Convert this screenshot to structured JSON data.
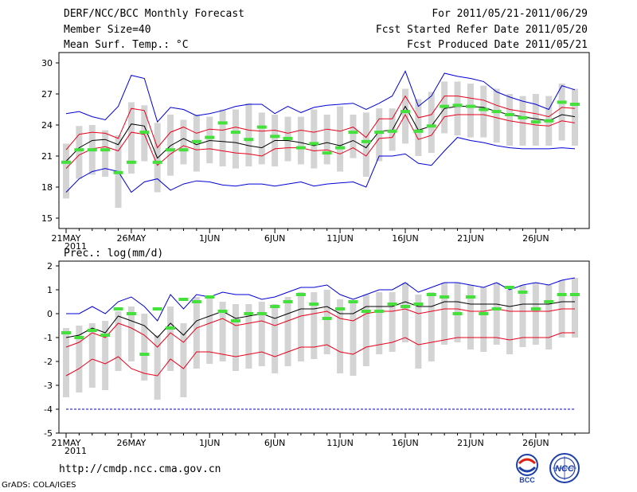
{
  "header": {
    "title": "DERF/NCC/BCC Monthly Forecast",
    "member_size": "Member Size=40",
    "variable": "Mean Surf. Temp.: °C",
    "period": "For 2011/05/21-2011/06/29",
    "fcst_started": "Fcst Started Refer Date 2011/05/20",
    "fcst_produced": "Fcst Produced Date 2011/05/21"
  },
  "footer": {
    "url": "http://cmdp.ncc.cma.gov.cn",
    "credit": "GrADS: COLA/IGES",
    "logo_bcc": "BCC",
    "logo_ncc": "NCC"
  },
  "colors": {
    "ensemble_mean": "#000000",
    "inner_band": "#e8001c",
    "outer_band": "#0000d8",
    "box": "#d4d4d4",
    "observed": "#44e03c",
    "floor_line": "#0000d8"
  },
  "chart_data": [
    {
      "type": "line",
      "title": "Mean Surf. Temp.: °C",
      "x_tick_labels": [
        "21MAY",
        "26MAY",
        "1JUN",
        "6JUN",
        "11JUN",
        "16JUN",
        "21JUN",
        "26JUN"
      ],
      "x_tick_days": [
        0,
        5,
        11,
        16,
        21,
        26,
        31,
        36
      ],
      "year_label": "2011",
      "ylim": [
        14,
        31
      ],
      "yticks": [
        15,
        18,
        21,
        24,
        27,
        30
      ],
      "days": 40,
      "series": [
        {
          "name": "mean",
          "values": [
            20.5,
            21.8,
            22.5,
            22.6,
            22.1,
            24.1,
            23.9,
            20.8,
            22.0,
            22.7,
            22.1,
            22.5,
            22.4,
            22.3,
            22.0,
            21.8,
            22.5,
            22.5,
            22.3,
            22.0,
            22.3,
            22.0,
            22.5,
            21.8,
            23.4,
            23.5,
            25.8,
            23.5,
            23.9,
            25.6,
            25.8,
            25.8,
            25.7,
            25.3,
            25.0,
            24.8,
            24.6,
            24.4,
            25.0,
            24.8
          ]
        },
        {
          "name": "upper_red",
          "values": [
            21.6,
            23.1,
            23.3,
            23.2,
            22.7,
            25.6,
            25.4,
            21.8,
            23.3,
            23.8,
            23.2,
            23.6,
            23.5,
            23.8,
            23.5,
            23.4,
            23.5,
            23.2,
            23.5,
            23.3,
            23.6,
            23.4,
            23.8,
            22.8,
            24.6,
            24.6,
            26.8,
            24.7,
            25.0,
            26.8,
            26.8,
            26.6,
            26.4,
            25.9,
            25.5,
            25.3,
            25.1,
            24.8,
            25.7,
            25.6
          ]
        },
        {
          "name": "lower_red",
          "values": [
            19.8,
            21.1,
            21.7,
            21.9,
            21.5,
            23.3,
            23.1,
            20.1,
            21.2,
            22.0,
            21.6,
            21.7,
            21.5,
            21.3,
            21.2,
            21.0,
            21.7,
            21.8,
            21.8,
            21.5,
            21.6,
            21.2,
            21.8,
            21.0,
            22.7,
            22.8,
            25.0,
            22.6,
            23.0,
            24.8,
            25.0,
            25.0,
            25.0,
            24.7,
            24.4,
            24.2,
            24.0,
            23.9,
            24.4,
            24.2
          ]
        },
        {
          "name": "upper_blue",
          "values": [
            25.1,
            25.3,
            24.8,
            24.5,
            25.8,
            28.8,
            28.5,
            24.3,
            25.7,
            25.5,
            24.9,
            25.1,
            25.4,
            25.8,
            26.0,
            26.0,
            25.1,
            25.8,
            25.2,
            25.7,
            25.9,
            26.0,
            26.1,
            25.5,
            26.1,
            26.8,
            29.2,
            25.8,
            26.8,
            29.0,
            28.7,
            28.5,
            28.2,
            27.2,
            26.7,
            26.3,
            26.0,
            25.5,
            27.8,
            27.4
          ]
        },
        {
          "name": "lower_blue",
          "values": [
            17.5,
            18.8,
            19.5,
            19.8,
            19.5,
            17.5,
            18.5,
            18.8,
            17.7,
            18.3,
            18.6,
            18.5,
            18.2,
            18.1,
            18.3,
            18.3,
            18.1,
            18.3,
            18.5,
            18.1,
            18.3,
            18.4,
            18.5,
            18.0,
            21.0,
            21.0,
            21.2,
            20.3,
            20.1,
            21.5,
            22.8,
            22.5,
            22.3,
            22.0,
            21.8,
            21.7,
            21.7,
            21.7,
            21.8,
            21.7
          ]
        }
      ],
      "boxes": [
        [
          16.9,
          22.2
        ],
        [
          18.8,
          23.9
        ],
        [
          19.2,
          24.0
        ],
        [
          19.0,
          23.5
        ],
        [
          16.0,
          23.0
        ],
        [
          19.3,
          26.2
        ],
        [
          20.5,
          25.9
        ],
        [
          17.5,
          24.2
        ],
        [
          19.1,
          25.0
        ],
        [
          20.2,
          24.5
        ],
        [
          19.5,
          25.0
        ],
        [
          20.3,
          24.8
        ],
        [
          20.0,
          25.5
        ],
        [
          19.8,
          25.5
        ],
        [
          20.0,
          26.1
        ],
        [
          20.2,
          25.2
        ],
        [
          20.0,
          25.0
        ],
        [
          20.5,
          24.8
        ],
        [
          20.2,
          24.8
        ],
        [
          19.8,
          25.5
        ],
        [
          20.2,
          25.0
        ],
        [
          19.5,
          25.8
        ],
        [
          20.8,
          25.0
        ],
        [
          19.0,
          25.2
        ],
        [
          20.5,
          25.6
        ],
        [
          21.5,
          25.6
        ],
        [
          22.2,
          27.5
        ],
        [
          21.0,
          26.5
        ],
        [
          21.3,
          27.2
        ],
        [
          23.2,
          28.2
        ],
        [
          23.0,
          28.2
        ],
        [
          22.8,
          28.0
        ],
        [
          22.8,
          27.8
        ],
        [
          22.3,
          27.5
        ],
        [
          22.0,
          27.0
        ],
        [
          22.0,
          26.8
        ],
        [
          22.0,
          27.0
        ],
        [
          22.0,
          26.8
        ],
        [
          22.5,
          28.0
        ],
        [
          22.0,
          27.5
        ]
      ],
      "observed": [
        20.4,
        21.6,
        21.6,
        21.6,
        19.4,
        20.4,
        23.3,
        20.4,
        21.6,
        21.6,
        22.4,
        22.8,
        24.2,
        23.3,
        22.6,
        23.8,
        22.9,
        22.7,
        21.8,
        22.2,
        21.3,
        21.8,
        23.3,
        22.4,
        23.3,
        23.4,
        25.3,
        23.4,
        23.9,
        25.8,
        25.9,
        25.8,
        25.5,
        25.3,
        25.0,
        24.7,
        24.3,
        24.4,
        26.2,
        26.0
      ]
    },
    {
      "type": "line",
      "title": "Prec.: log(mm/d)",
      "x_tick_labels": [
        "21MAY",
        "26MAY",
        "1JUN",
        "6JUN",
        "11JUN",
        "16JUN",
        "21JUN",
        "26JUN"
      ],
      "x_tick_days": [
        0,
        5,
        11,
        16,
        21,
        26,
        31,
        36
      ],
      "year_label": "2011",
      "ylim": [
        -5,
        2.2
      ],
      "yticks": [
        -5,
        -4,
        -3,
        -2,
        -1,
        0,
        1,
        2
      ],
      "days": 40,
      "series": [
        {
          "name": "mean",
          "values": [
            -1.0,
            -0.9,
            -0.6,
            -0.8,
            -0.1,
            -0.3,
            -0.5,
            -1.0,
            -0.4,
            -0.9,
            -0.3,
            -0.1,
            0.1,
            -0.2,
            -0.1,
            0.0,
            -0.2,
            0.0,
            0.2,
            0.2,
            0.3,
            0.0,
            0.0,
            0.3,
            0.3,
            0.3,
            0.5,
            0.3,
            0.3,
            0.5,
            0.5,
            0.4,
            0.4,
            0.4,
            0.3,
            0.4,
            0.4,
            0.4,
            0.5,
            0.5
          ]
        },
        {
          "name": "upper_red",
          "values": [
            -1.4,
            -1.2,
            -0.8,
            -1.0,
            -0.4,
            -0.6,
            -0.9,
            -1.4,
            -0.8,
            -1.2,
            -0.6,
            -0.4,
            -0.2,
            -0.5,
            -0.4,
            -0.3,
            -0.5,
            -0.3,
            -0.1,
            0.0,
            0.1,
            -0.2,
            -0.3,
            0.0,
            0.1,
            0.1,
            0.2,
            0.0,
            0.1,
            0.2,
            0.2,
            0.1,
            0.1,
            0.2,
            0.1,
            0.1,
            0.1,
            0.1,
            0.2,
            0.2
          ]
        },
        {
          "name": "lower_red",
          "values": [
            -2.6,
            -2.3,
            -1.9,
            -2.1,
            -1.8,
            -2.3,
            -2.5,
            -2.6,
            -1.9,
            -2.3,
            -1.6,
            -1.6,
            -1.7,
            -1.8,
            -1.7,
            -1.6,
            -1.8,
            -1.6,
            -1.4,
            -1.4,
            -1.3,
            -1.6,
            -1.7,
            -1.4,
            -1.3,
            -1.2,
            -1.0,
            -1.3,
            -1.2,
            -1.1,
            -1.0,
            -1.0,
            -1.0,
            -1.0,
            -1.1,
            -1.0,
            -1.0,
            -1.0,
            -0.8,
            -0.8
          ]
        },
        {
          "name": "upper_blue",
          "values": [
            0.0,
            0.0,
            0.3,
            0.0,
            0.5,
            0.7,
            0.3,
            -0.3,
            0.8,
            0.2,
            0.8,
            0.7,
            0.9,
            0.8,
            0.8,
            0.6,
            0.7,
            0.9,
            1.1,
            1.1,
            1.2,
            0.8,
            0.6,
            0.8,
            1.0,
            1.0,
            1.3,
            0.9,
            1.1,
            1.3,
            1.3,
            1.2,
            1.1,
            1.3,
            1.0,
            1.2,
            1.3,
            1.2,
            1.4,
            1.5
          ]
        },
        {
          "name": "floor",
          "values": [
            -4,
            -4,
            -4,
            -4,
            -4,
            -4,
            -4,
            -4,
            -4,
            -4,
            -4,
            -4,
            -4,
            -4,
            -4,
            -4,
            -4,
            -4,
            -4,
            -4,
            -4,
            -4,
            -4,
            -4,
            -4,
            -4,
            -4,
            -4,
            -4,
            -4,
            -4,
            -4,
            -4,
            -4,
            -4,
            -4,
            -4,
            -4,
            -4,
            -4
          ]
        }
      ],
      "boxes": [
        [
          -3.5,
          -0.6
        ],
        [
          -3.3,
          -0.5
        ],
        [
          -3.1,
          -0.4
        ],
        [
          -3.2,
          -0.3
        ],
        [
          -2.4,
          0.1
        ],
        [
          -2.0,
          0.3
        ],
        [
          -2.8,
          0.0
        ],
        [
          -3.6,
          -0.9
        ],
        [
          -2.4,
          0.3
        ],
        [
          -3.5,
          -0.4
        ],
        [
          -2.3,
          0.7
        ],
        [
          -2.1,
          0.7
        ],
        [
          -2.0,
          0.5
        ],
        [
          -2.4,
          0.4
        ],
        [
          -2.3,
          0.4
        ],
        [
          -2.2,
          0.5
        ],
        [
          -2.5,
          0.4
        ],
        [
          -2.2,
          0.7
        ],
        [
          -2.0,
          0.9
        ],
        [
          -1.9,
          0.9
        ],
        [
          -1.7,
          1.0
        ],
        [
          -2.5,
          0.6
        ],
        [
          -2.6,
          0.5
        ],
        [
          -2.2,
          0.8
        ],
        [
          -1.7,
          0.9
        ],
        [
          -1.6,
          0.9
        ],
        [
          -1.2,
          1.3
        ],
        [
          -2.3,
          0.8
        ],
        [
          -2.0,
          0.9
        ],
        [
          -1.3,
          1.3
        ],
        [
          -1.2,
          1.3
        ],
        [
          -1.5,
          1.2
        ],
        [
          -1.6,
          1.1
        ],
        [
          -1.3,
          1.3
        ],
        [
          -1.7,
          1.0
        ],
        [
          -1.4,
          1.2
        ],
        [
          -1.3,
          1.3
        ],
        [
          -1.5,
          1.2
        ],
        [
          -1.0,
          1.4
        ],
        [
          -1.0,
          1.5
        ]
      ],
      "observed": [
        -0.8,
        -1.0,
        -0.7,
        -0.9,
        0.2,
        0.0,
        -1.7,
        0.2,
        -0.6,
        0.6,
        0.5,
        0.7,
        0.1,
        -0.3,
        0.0,
        0.0,
        0.3,
        0.5,
        0.8,
        0.4,
        -0.2,
        0.2,
        0.5,
        0.1,
        0.1,
        0.4,
        0.3,
        0.4,
        0.8,
        0.7,
        0.0,
        0.7,
        0.0,
        0.2,
        1.1,
        0.9,
        0.2,
        0.5,
        0.8,
        0.8
      ]
    }
  ]
}
